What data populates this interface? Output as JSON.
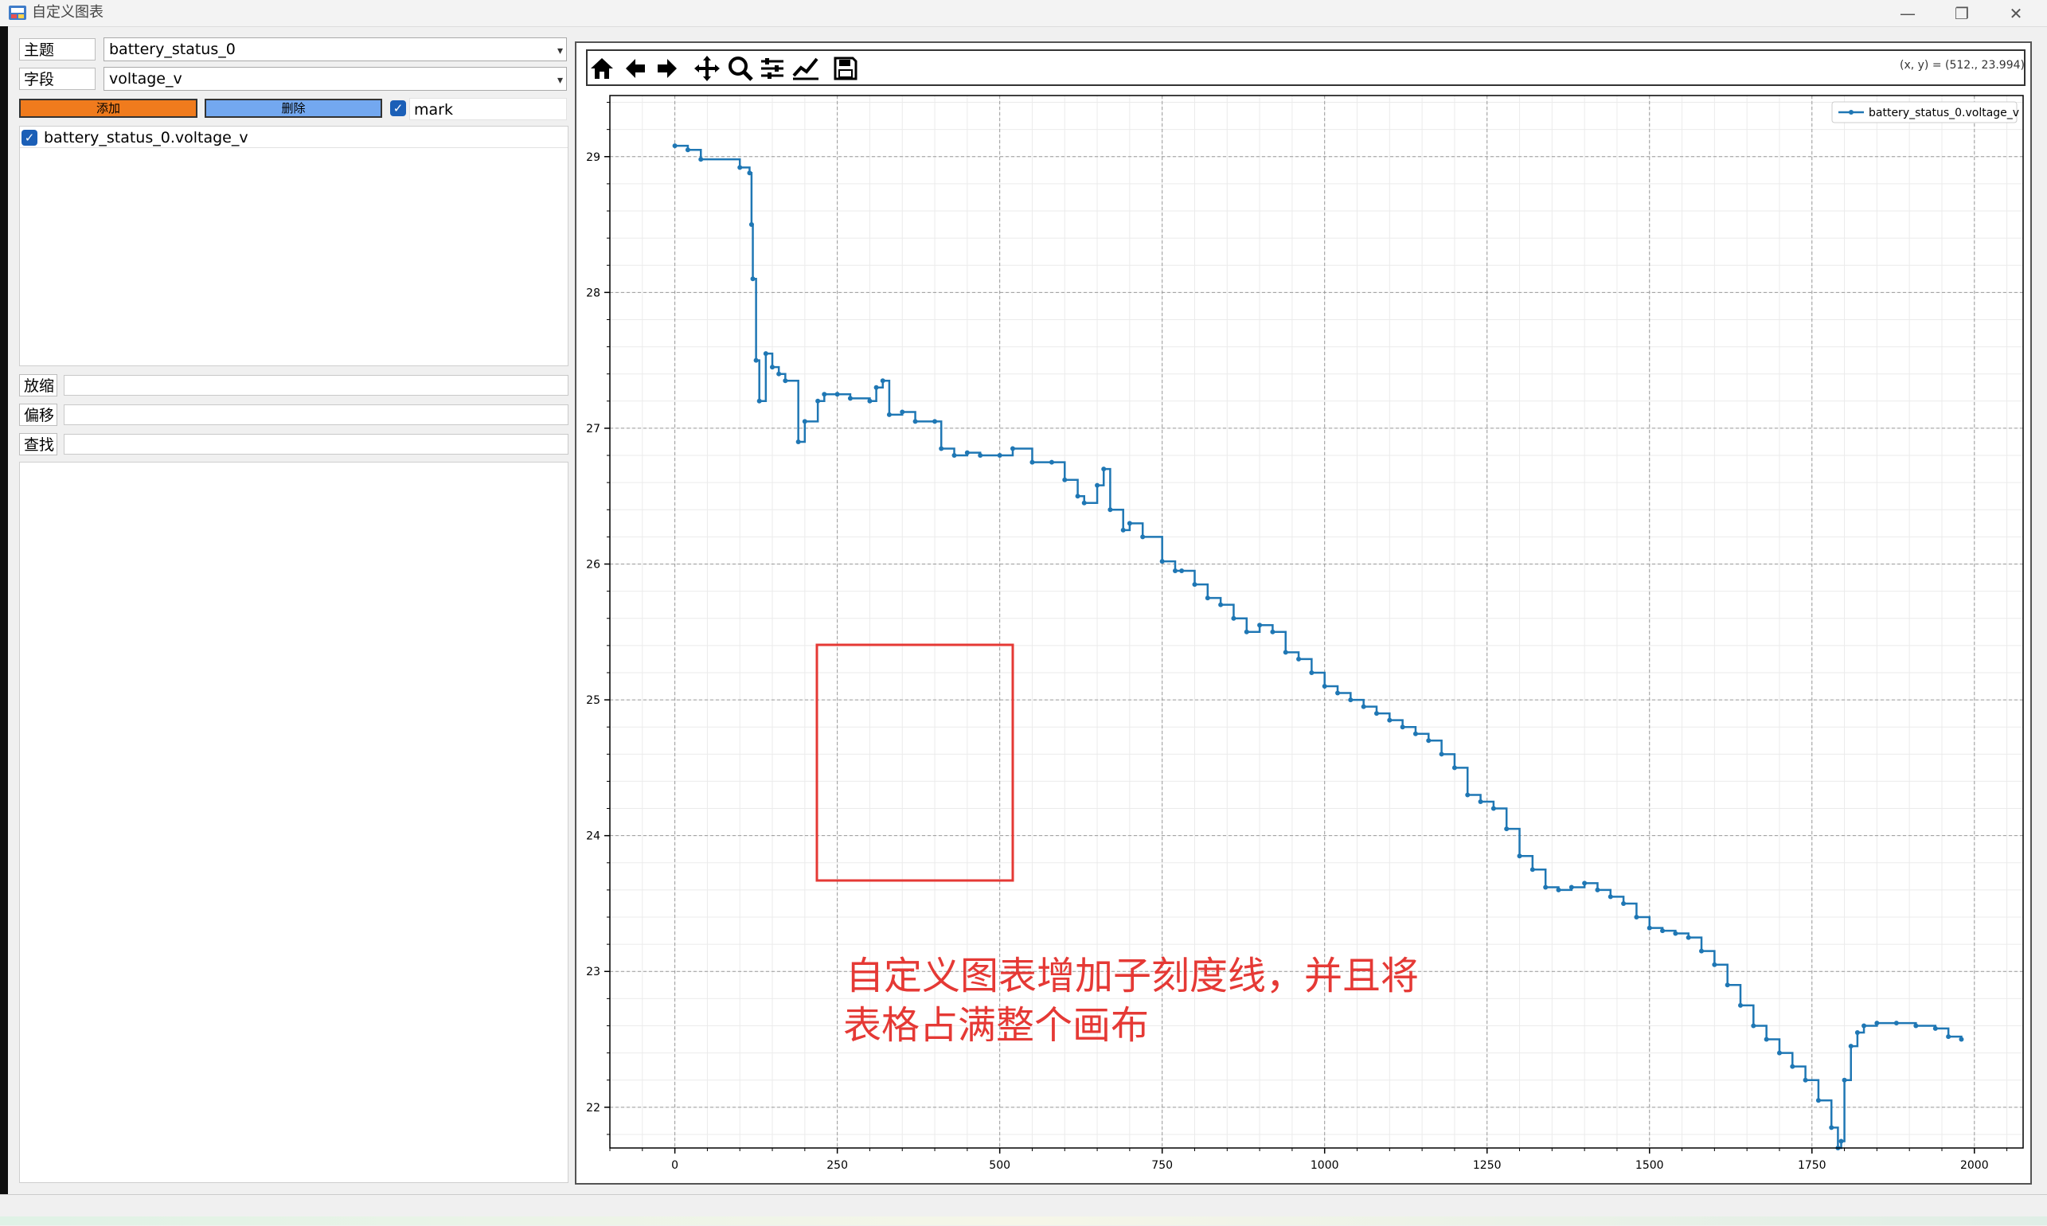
{
  "window": {
    "title": "自定义图表",
    "controls": [
      "minimize-icon",
      "maximize-icon",
      "close-icon"
    ]
  },
  "form": {
    "topic_label": "主题",
    "topic_value": "battery_status_0",
    "field_label": "字段",
    "field_value": "voltage_v",
    "add_button": "添加",
    "delete_button": "删除",
    "mark_label": "mark",
    "mark_checked": true,
    "series_list": [
      {
        "label": "battery_status_0.voltage_v",
        "checked": true
      }
    ],
    "zoom_label": "放缩",
    "offset_label": "偏移",
    "find_label": "查找"
  },
  "colors": {
    "add": "#f07b1d",
    "delete": "#73a8f0",
    "series": "#1f77b4",
    "annotation": "#e53935"
  },
  "toolbar": {
    "icons": [
      "home-icon",
      "back-icon",
      "forward-icon",
      "pan-icon",
      "zoom-icon",
      "configure-subplots-icon",
      "edit-axis-icon",
      "save-icon"
    ],
    "coords": "(x, y) = (512., 23.994)"
  },
  "annotation": {
    "line1": "自定义图表增加子刻度线，并且将",
    "line2": "表格占满整个画布"
  },
  "chart_data": {
    "type": "line",
    "legend": "battery_status_0.voltage_v",
    "legend_position": "top-right",
    "grid": "major and minor",
    "xlim": [
      -100,
      2075
    ],
    "ylim": [
      21.7,
      29.45
    ],
    "xticks": [
      0,
      250,
      500,
      750,
      1000,
      1250,
      1500,
      1750,
      2000
    ],
    "yticks": [
      22,
      23,
      24,
      25,
      26,
      27,
      28,
      29
    ],
    "series": [
      {
        "name": "battery_status_0.voltage_v",
        "x": [
          0,
          20,
          40,
          100,
          115,
          118,
          120,
          125,
          130,
          140,
          150,
          160,
          170,
          190,
          200,
          220,
          230,
          250,
          270,
          300,
          310,
          320,
          330,
          350,
          370,
          400,
          410,
          430,
          450,
          470,
          500,
          520,
          550,
          580,
          600,
          620,
          630,
          650,
          660,
          670,
          690,
          700,
          720,
          750,
          770,
          780,
          800,
          820,
          840,
          860,
          880,
          900,
          920,
          940,
          960,
          980,
          1000,
          1020,
          1040,
          1060,
          1080,
          1100,
          1120,
          1140,
          1160,
          1180,
          1200,
          1220,
          1240,
          1260,
          1280,
          1300,
          1320,
          1340,
          1360,
          1380,
          1400,
          1420,
          1440,
          1460,
          1480,
          1500,
          1520,
          1540,
          1560,
          1580,
          1600,
          1620,
          1640,
          1660,
          1680,
          1700,
          1720,
          1740,
          1760,
          1780,
          1790,
          1795,
          1800,
          1810,
          1820,
          1830,
          1850,
          1880,
          1910,
          1940,
          1960,
          1980
        ],
        "y": [
          29.08,
          29.05,
          28.98,
          28.92,
          28.88,
          28.5,
          28.1,
          27.5,
          27.2,
          27.55,
          27.45,
          27.4,
          27.35,
          26.9,
          27.05,
          27.2,
          27.25,
          27.25,
          27.22,
          27.2,
          27.3,
          27.35,
          27.1,
          27.12,
          27.05,
          27.05,
          26.85,
          26.8,
          26.82,
          26.8,
          26.8,
          26.85,
          26.75,
          26.75,
          26.62,
          26.5,
          26.45,
          26.58,
          26.7,
          26.4,
          26.25,
          26.3,
          26.2,
          26.02,
          25.95,
          25.95,
          25.85,
          25.75,
          25.7,
          25.6,
          25.5,
          25.55,
          25.5,
          25.35,
          25.3,
          25.2,
          25.1,
          25.05,
          25.0,
          24.95,
          24.9,
          24.85,
          24.8,
          24.75,
          24.7,
          24.6,
          24.5,
          24.3,
          24.25,
          24.2,
          24.05,
          23.85,
          23.75,
          23.62,
          23.6,
          23.62,
          23.65,
          23.6,
          23.55,
          23.5,
          23.4,
          23.32,
          23.3,
          23.28,
          23.25,
          23.15,
          23.05,
          22.9,
          22.75,
          22.6,
          22.5,
          22.4,
          22.3,
          22.2,
          22.05,
          21.85,
          21.7,
          21.75,
          22.2,
          22.45,
          22.55,
          22.6,
          22.62,
          22.62,
          22.6,
          22.58,
          22.52,
          22.5
        ]
      }
    ]
  }
}
